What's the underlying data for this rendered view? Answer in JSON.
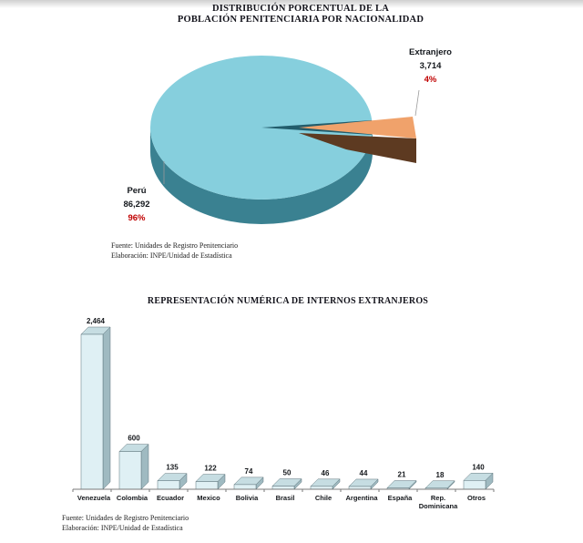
{
  "chart_data": [
    {
      "type": "pie",
      "title_lines": [
        "DISTRIBUCIÓN PORCENTUAL DE LA",
        "POBLACIÓN PENITENCIARIA POR NACIONALIDAD"
      ],
      "slices": [
        {
          "label": "Perú",
          "value": 86292,
          "value_label": "86,292",
          "pct": "96%"
        },
        {
          "label": "Extranjero",
          "value": 3714,
          "value_label": "3,714",
          "pct": "4%"
        }
      ],
      "colors": {
        "peru_top": "#86cfdd",
        "peru_side": "#3a8191",
        "cut_inner": "#225c6b",
        "extranjero_top": "#f0a26b",
        "extranjero_side": "#5d3a21",
        "pct_text": "#c00000"
      },
      "legend": "none",
      "source_lines": [
        "Fuente: Unidades de Registro Penitenciario",
        "Elaboración: INPE/Unidad de Estadística"
      ]
    },
    {
      "type": "bar",
      "title": "REPRESENTACIÓN NUMÉRICA DE INTERNOS EXTRANJEROS",
      "categories": [
        "Venezuela",
        "Colombia",
        "Ecuador",
        "Mexico",
        "Bolivia",
        "Brasil",
        "Chile",
        "Argentina",
        "España",
        "Rep.\nDominicana",
        "Otros"
      ],
      "values": [
        2464,
        600,
        135,
        122,
        74,
        50,
        46,
        44,
        21,
        18,
        140
      ],
      "value_labels": [
        "2,464",
        "600",
        "135",
        "122",
        "74",
        "50",
        "46",
        "44",
        "21",
        "18",
        "140"
      ],
      "xlabel": "",
      "ylabel": "",
      "ylim": [
        0,
        2464
      ],
      "grid": "off",
      "bar_colors": {
        "front": "#dff0f4",
        "top": "#c6dde2",
        "side": "#9fbac1",
        "stroke": "#5f757c"
      },
      "axis_color": "#7a7a7a",
      "source_lines": [
        "Fuente: Unidades de Registro Penitenciario",
        "Elaboración: INPE/Unidad de Estadística"
      ]
    }
  ]
}
